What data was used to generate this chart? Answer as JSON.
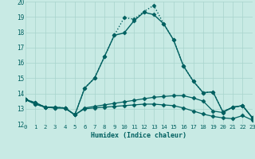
{
  "xlabel": "Humidex (Indice chaleur)",
  "xlim": [
    0,
    23
  ],
  "ylim": [
    12,
    20
  ],
  "yticks": [
    12,
    13,
    14,
    15,
    16,
    17,
    18,
    19,
    20
  ],
  "xticks": [
    0,
    1,
    2,
    3,
    4,
    5,
    6,
    7,
    8,
    9,
    10,
    11,
    12,
    13,
    14,
    15,
    16,
    17,
    18,
    19,
    20,
    21,
    22,
    23
  ],
  "bg_color": "#c8eae4",
  "grid_color": "#a8d4cc",
  "line_color": "#006060",
  "lines": [
    {
      "x": [
        0,
        1,
        2,
        3,
        4,
        5,
        6,
        7,
        8,
        9,
        10,
        11,
        12,
        13,
        14,
        15,
        16,
        17,
        18,
        19,
        20,
        21,
        22,
        23
      ],
      "y": [
        13.6,
        13.4,
        13.1,
        13.1,
        13.05,
        12.6,
        14.35,
        15.0,
        16.4,
        17.8,
        17.95,
        18.75,
        19.3,
        19.15,
        18.55,
        17.5,
        15.8,
        14.8,
        14.05,
        14.1,
        12.8,
        13.1,
        13.2,
        12.4
      ],
      "marker": "D",
      "markersize": 2.5,
      "linewidth": 1.0,
      "linestyle": "-"
    },
    {
      "x": [
        0,
        1,
        2,
        3,
        4,
        5,
        6,
        7,
        8,
        9,
        10,
        11,
        12,
        13,
        14,
        15,
        16,
        17,
        18,
        19,
        20,
        21,
        22,
        23
      ],
      "y": [
        13.6,
        13.4,
        13.1,
        13.1,
        13.05,
        12.6,
        14.35,
        15.0,
        16.4,
        17.8,
        18.95,
        18.85,
        19.35,
        19.75,
        18.55,
        17.5,
        15.8,
        14.8,
        14.05,
        14.1,
        12.8,
        13.1,
        13.2,
        12.4
      ],
      "marker": "D",
      "markersize": 2.5,
      "linewidth": 1.0,
      "linestyle": ":"
    },
    {
      "x": [
        0,
        1,
        2,
        3,
        4,
        5,
        6,
        7,
        8,
        9,
        10,
        11,
        12,
        13,
        14,
        15,
        16,
        17,
        18,
        19,
        20,
        21,
        22,
        23
      ],
      "y": [
        13.6,
        13.3,
        13.1,
        13.05,
        13.05,
        12.6,
        13.05,
        13.15,
        13.25,
        13.35,
        13.45,
        13.55,
        13.65,
        13.75,
        13.8,
        13.85,
        13.85,
        13.7,
        13.5,
        12.85,
        12.75,
        13.1,
        13.2,
        12.4
      ],
      "marker": "D",
      "markersize": 2.5,
      "linewidth": 0.9,
      "linestyle": "-"
    },
    {
      "x": [
        0,
        1,
        2,
        3,
        4,
        5,
        6,
        7,
        8,
        9,
        10,
        11,
        12,
        13,
        14,
        15,
        16,
        17,
        18,
        19,
        20,
        21,
        22,
        23
      ],
      "y": [
        13.6,
        13.3,
        13.1,
        13.05,
        13.05,
        12.6,
        13.0,
        13.05,
        13.1,
        13.15,
        13.2,
        13.25,
        13.3,
        13.3,
        13.25,
        13.2,
        13.05,
        12.85,
        12.65,
        12.5,
        12.4,
        12.35,
        12.55,
        12.25
      ],
      "marker": "D",
      "markersize": 2.5,
      "linewidth": 0.9,
      "linestyle": "-"
    }
  ]
}
